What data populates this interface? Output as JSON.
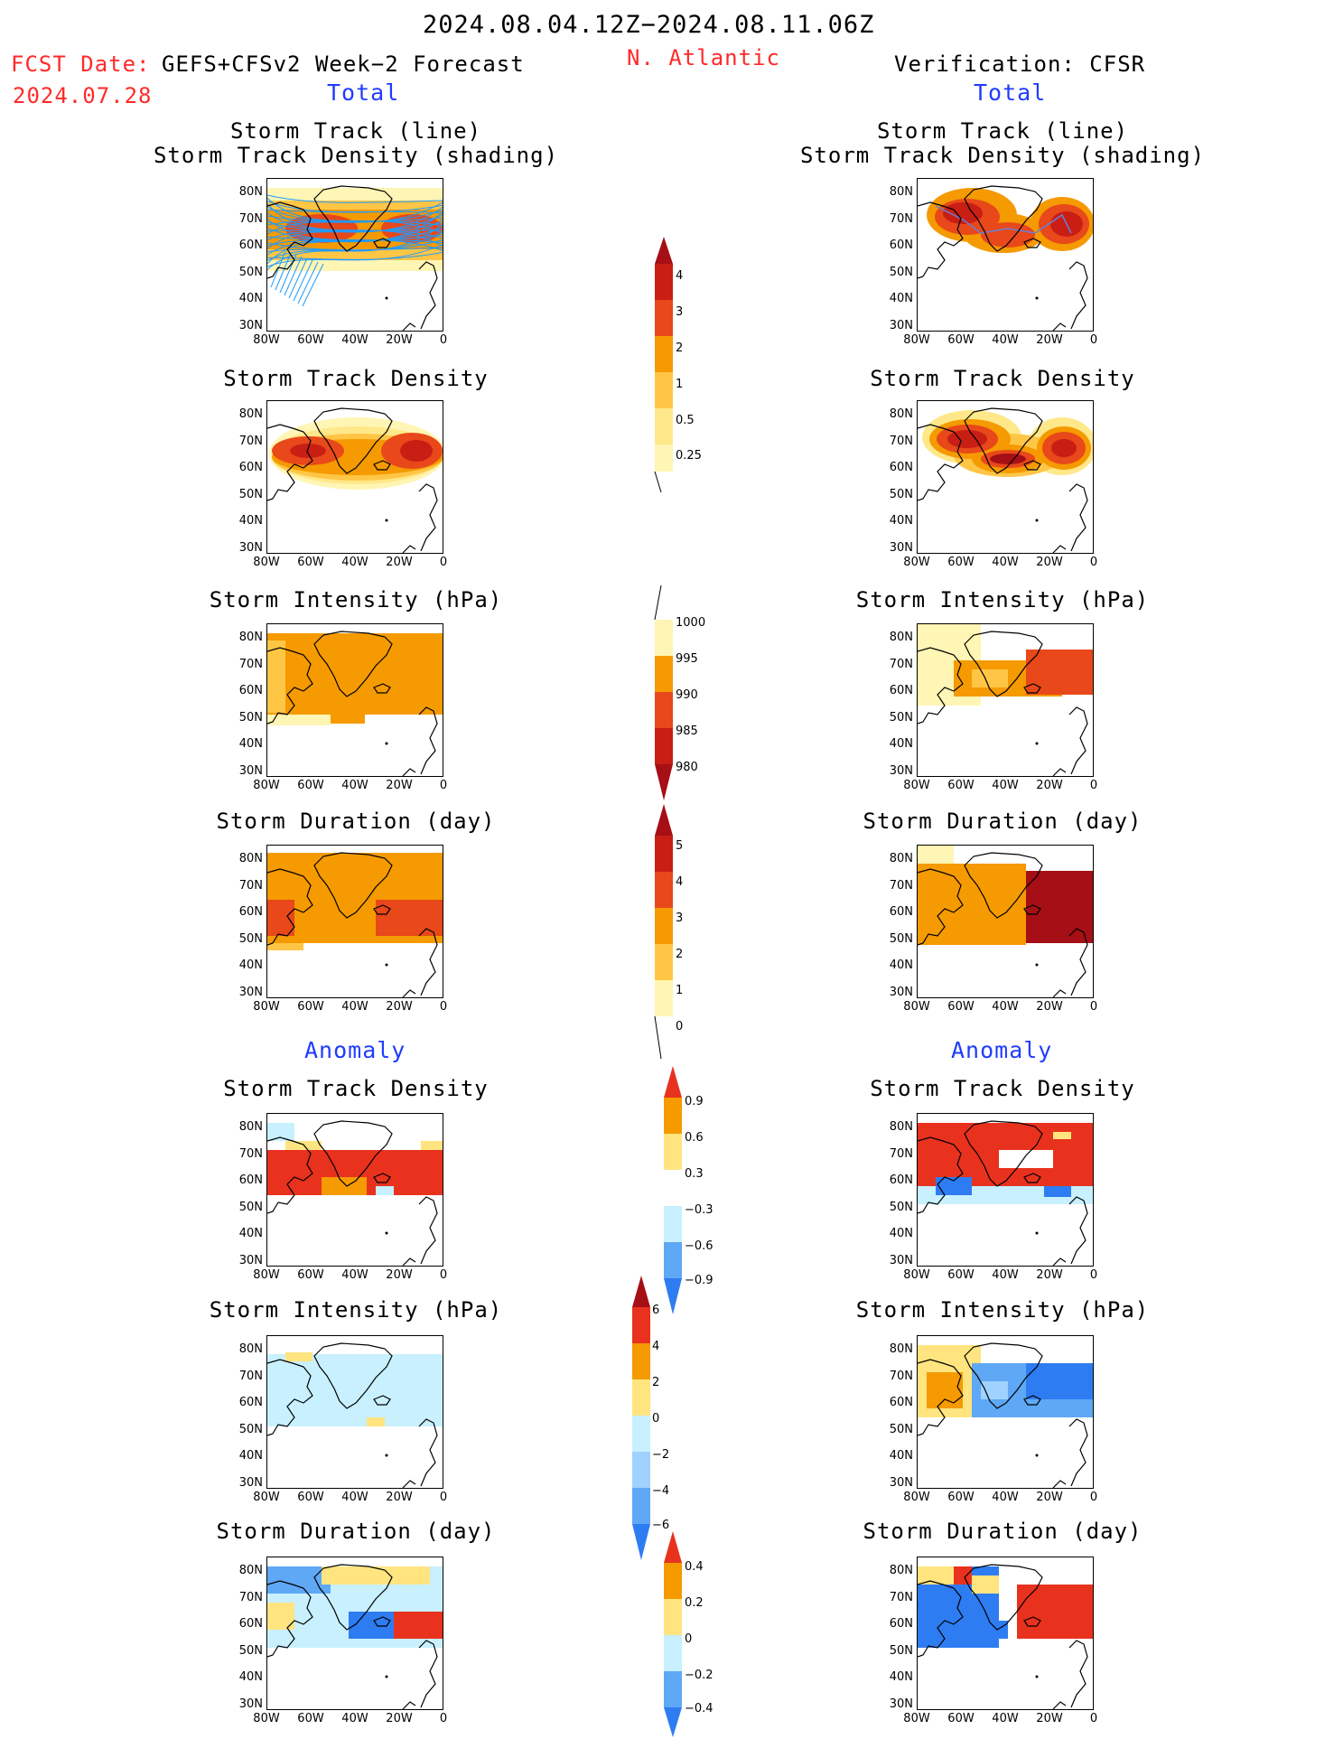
{
  "header": {
    "period": "2024.08.04.12Z−2024.08.11.06Z",
    "fcst_date_label": "FCST Date:",
    "model": "GEFS+CFSv2 Week−2 Forecast",
    "fcst_date": "2024.07.28",
    "region": "N. Atlantic",
    "verification": "Verification: CFSR",
    "left_section_total": "Total",
    "right_section_total": "Total",
    "left_section_anomaly": "Anomaly",
    "right_section_anomaly": "Anomaly"
  },
  "panel_titles": {
    "track_line": "Storm Track (line)",
    "track_density_shading": "Storm Track Density (shading)",
    "track_density": "Storm Track Density",
    "intensity": "Storm Intensity (hPa)",
    "duration": "Storm Duration (day)"
  },
  "axes": {
    "lat_labels": [
      "80N",
      "70N",
      "60N",
      "50N",
      "40N",
      "30N"
    ],
    "lon_labels": [
      "80W",
      "60W",
      "40W",
      "20W",
      "0"
    ]
  },
  "colorbars": {
    "density": [
      "4",
      "3",
      "2",
      "1",
      "0.5",
      "0.25"
    ],
    "intensity": [
      "1000",
      "995",
      "990",
      "985",
      "980"
    ],
    "duration": [
      "5",
      "4",
      "3",
      "2",
      "1",
      "0"
    ],
    "density_anom": [
      "0.9",
      "0.6",
      "0.3",
      "−0.3",
      "−0.6",
      "−0.9"
    ],
    "intensity_anom": [
      "6",
      "4",
      "2",
      "0",
      "−2",
      "−4",
      "−6"
    ],
    "duration_anom": [
      "0.4",
      "0.2",
      "0",
      "−0.2",
      "−0.4"
    ]
  },
  "colors": {
    "title_red": "#ff2a2a",
    "section_blue": "#1f3cff",
    "track_line": "#1e9bff",
    "dark_red": "#a50f15",
    "red": "#e8321e",
    "orange": "#f59a00",
    "light_orange": "#ffc646",
    "pale_yellow": "#fff5b4",
    "light_blue": "#c8f0ff",
    "blue": "#2e7cf2"
  }
}
